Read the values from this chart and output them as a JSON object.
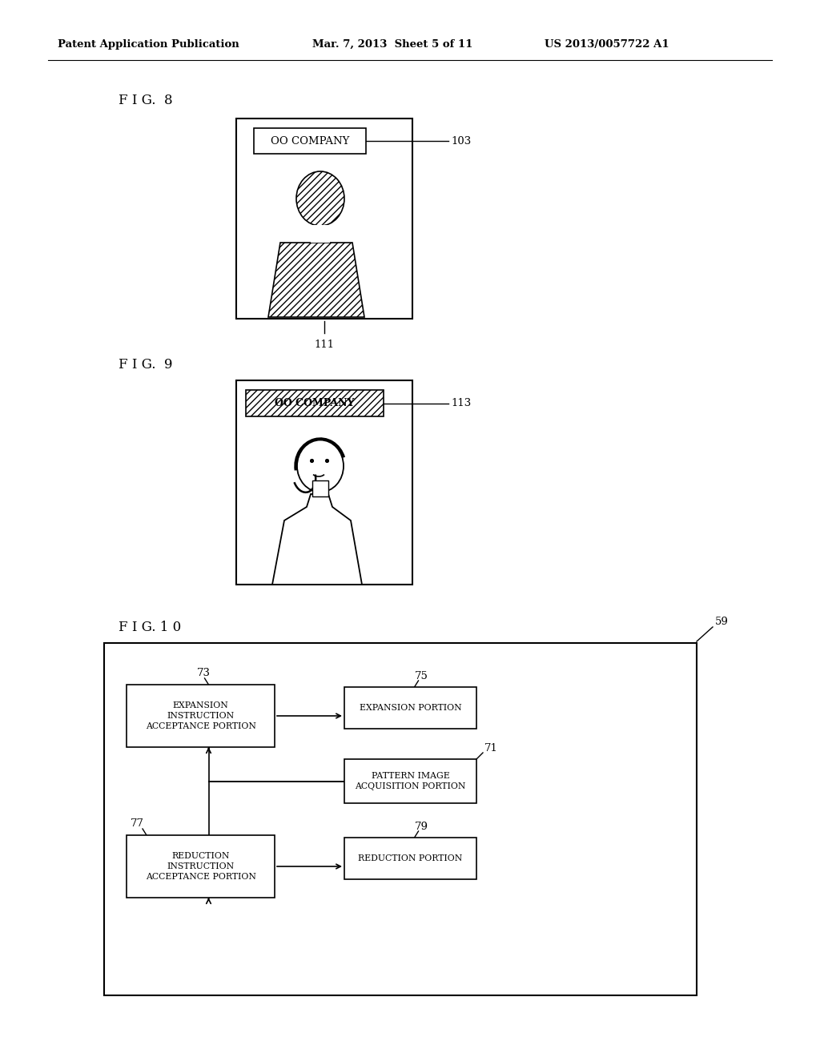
{
  "bg_color": "#ffffff",
  "header_left": "Patent Application Publication",
  "header_mid": "Mar. 7, 2013  Sheet 5 of 11",
  "header_right": "US 2013/0057722 A1",
  "fig8_label": "F I G.  8",
  "fig9_label": "F I G.  9",
  "fig10_label": "F I G. 1 0",
  "label_103": "103",
  "label_111": "111",
  "label_113": "113",
  "label_59": "59",
  "label_73": "73",
  "label_75": "75",
  "label_71": "71",
  "label_77": "77",
  "label_79": "79",
  "box_expansion_instruction": "EXPANSION\nINSTRUCTION\nACCEPTANCE PORTION",
  "box_expansion": "EXPANSION PORTION",
  "box_pattern": "PATTERN IMAGE\nACQUISITION PORTION",
  "box_reduction_instruction": "REDUCTION\nINSTRUCTION\nACCEPTANCE PORTION",
  "box_reduction": "REDUCTION PORTION",
  "company_text": "OO COMPANY",
  "company_text2": "OO COMPANY"
}
